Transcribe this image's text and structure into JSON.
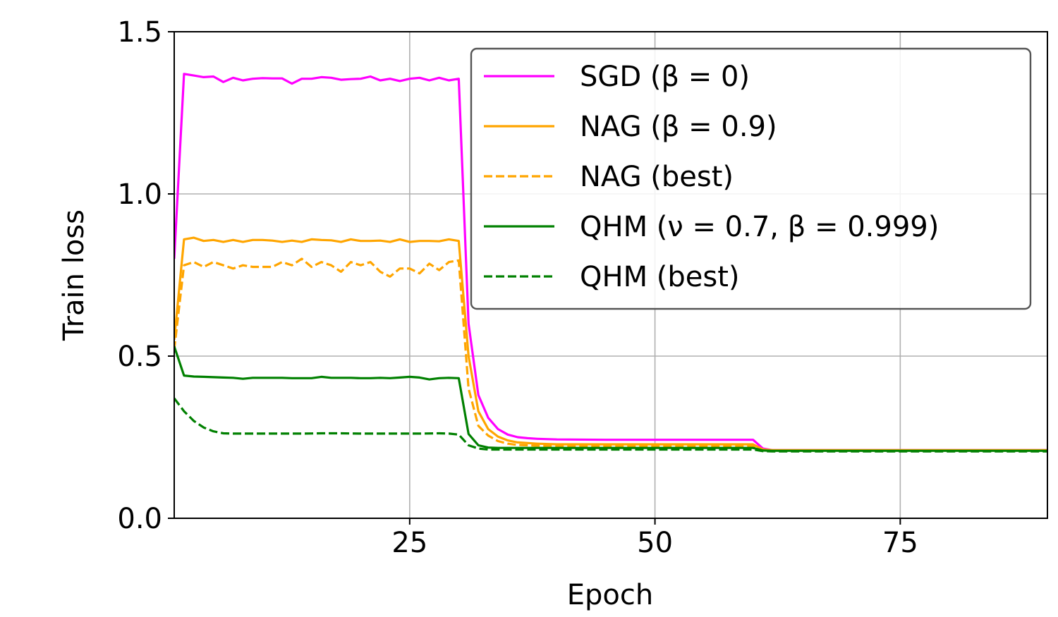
{
  "chart_data": {
    "type": "line",
    "title": "",
    "xlabel": "Epoch",
    "ylabel": "Train loss",
    "xlim": [
      1,
      90
    ],
    "ylim": [
      0,
      1.5
    ],
    "xticks": [
      25,
      50,
      75
    ],
    "yticks": [
      0.0,
      0.5,
      1.0,
      1.5
    ],
    "xtick_labels": [
      "25",
      "50",
      "75"
    ],
    "ytick_labels": [
      "0.0",
      "0.5",
      "1.0",
      "1.5"
    ],
    "grid": true,
    "legend_position": "top-right",
    "series": [
      {
        "name": "SGD (β = 0)",
        "color": "#ff00ff",
        "dash": "solid",
        "x": [
          1,
          2,
          3,
          4,
          5,
          6,
          7,
          8,
          9,
          10,
          11,
          12,
          13,
          14,
          15,
          16,
          17,
          18,
          19,
          20,
          21,
          22,
          23,
          24,
          25,
          26,
          27,
          28,
          29,
          30,
          31,
          32,
          33,
          34,
          35,
          36,
          37,
          38,
          40,
          45,
          50,
          55,
          59,
          60,
          61,
          62,
          65,
          70,
          80,
          90
        ],
        "y": [
          0.8,
          1.37,
          1.365,
          1.36,
          1.362,
          1.345,
          1.358,
          1.35,
          1.355,
          1.357,
          1.356,
          1.356,
          1.34,
          1.355,
          1.355,
          1.36,
          1.358,
          1.352,
          1.354,
          1.355,
          1.362,
          1.35,
          1.355,
          1.348,
          1.355,
          1.358,
          1.35,
          1.358,
          1.35,
          1.355,
          0.6,
          0.38,
          0.31,
          0.275,
          0.258,
          0.25,
          0.247,
          0.245,
          0.243,
          0.242,
          0.242,
          0.242,
          0.242,
          0.242,
          0.215,
          0.21,
          0.21,
          0.21,
          0.21,
          0.21
        ]
      },
      {
        "name": "NAG (β = 0.9)",
        "color": "#ffa500",
        "dash": "solid",
        "x": [
          1,
          2,
          3,
          4,
          5,
          6,
          7,
          8,
          9,
          10,
          11,
          12,
          13,
          14,
          15,
          16,
          17,
          18,
          19,
          20,
          21,
          22,
          23,
          24,
          25,
          26,
          27,
          28,
          29,
          30,
          31,
          32,
          33,
          34,
          35,
          36,
          38,
          40,
          45,
          50,
          55,
          59,
          60,
          61,
          62,
          65,
          70,
          80,
          90
        ],
        "y": [
          0.55,
          0.86,
          0.865,
          0.855,
          0.858,
          0.852,
          0.858,
          0.852,
          0.858,
          0.858,
          0.856,
          0.852,
          0.856,
          0.852,
          0.86,
          0.858,
          0.857,
          0.852,
          0.86,
          0.855,
          0.855,
          0.856,
          0.852,
          0.86,
          0.852,
          0.855,
          0.855,
          0.854,
          0.86,
          0.855,
          0.5,
          0.33,
          0.275,
          0.252,
          0.24,
          0.234,
          0.23,
          0.228,
          0.228,
          0.228,
          0.228,
          0.228,
          0.228,
          0.212,
          0.21,
          0.21,
          0.21,
          0.21,
          0.21
        ]
      },
      {
        "name": "NAG (best)",
        "color": "#ffa500",
        "dash": "dashed",
        "x": [
          1,
          2,
          3,
          4,
          5,
          6,
          7,
          8,
          9,
          10,
          11,
          12,
          13,
          14,
          15,
          16,
          17,
          18,
          19,
          20,
          21,
          22,
          23,
          24,
          25,
          26,
          27,
          28,
          29,
          30,
          31,
          32,
          33,
          34,
          35,
          36,
          38,
          40,
          45,
          50,
          55,
          59,
          60,
          61,
          62,
          65,
          70,
          80,
          90
        ],
        "y": [
          0.52,
          0.78,
          0.79,
          0.775,
          0.79,
          0.78,
          0.77,
          0.78,
          0.775,
          0.775,
          0.775,
          0.79,
          0.78,
          0.8,
          0.775,
          0.79,
          0.78,
          0.76,
          0.79,
          0.78,
          0.79,
          0.76,
          0.745,
          0.77,
          0.77,
          0.755,
          0.785,
          0.765,
          0.79,
          0.795,
          0.4,
          0.285,
          0.255,
          0.238,
          0.23,
          0.226,
          0.224,
          0.223,
          0.222,
          0.222,
          0.222,
          0.222,
          0.222,
          0.211,
          0.209,
          0.209,
          0.209,
          0.209,
          0.209
        ]
      },
      {
        "name": "QHM (ν = 0.7, β = 0.999)",
        "color": "#008000",
        "dash": "solid",
        "x": [
          1,
          2,
          3,
          4,
          5,
          6,
          7,
          8,
          9,
          10,
          11,
          12,
          13,
          14,
          15,
          16,
          17,
          18,
          19,
          20,
          21,
          22,
          23,
          24,
          25,
          26,
          27,
          28,
          29,
          30,
          31,
          32,
          33,
          34,
          35,
          38,
          40,
          45,
          50,
          55,
          59,
          60,
          61,
          62,
          65,
          70,
          80,
          90
        ],
        "y": [
          0.53,
          0.44,
          0.437,
          0.436,
          0.435,
          0.434,
          0.433,
          0.43,
          0.433,
          0.433,
          0.433,
          0.433,
          0.432,
          0.432,
          0.432,
          0.436,
          0.433,
          0.433,
          0.433,
          0.432,
          0.432,
          0.433,
          0.432,
          0.434,
          0.436,
          0.434,
          0.428,
          0.432,
          0.433,
          0.432,
          0.26,
          0.225,
          0.218,
          0.217,
          0.217,
          0.217,
          0.217,
          0.217,
          0.217,
          0.217,
          0.217,
          0.217,
          0.209,
          0.208,
          0.208,
          0.208,
          0.208,
          0.208
        ]
      },
      {
        "name": "QHM (best)",
        "color": "#008000",
        "dash": "dashed",
        "x": [
          1,
          2,
          3,
          4,
          5,
          6,
          7,
          8,
          10,
          12,
          14,
          16,
          18,
          20,
          22,
          24,
          26,
          28,
          29,
          30,
          31,
          32,
          33,
          34,
          35,
          38,
          40,
          45,
          50,
          55,
          59,
          60,
          61,
          62,
          65,
          70,
          80,
          90
        ],
        "y": [
          0.37,
          0.33,
          0.3,
          0.28,
          0.268,
          0.262,
          0.261,
          0.261,
          0.261,
          0.261,
          0.261,
          0.262,
          0.262,
          0.261,
          0.261,
          0.261,
          0.261,
          0.262,
          0.261,
          0.258,
          0.225,
          0.215,
          0.212,
          0.212,
          0.212,
          0.212,
          0.212,
          0.212,
          0.212,
          0.212,
          0.212,
          0.212,
          0.207,
          0.206,
          0.206,
          0.206,
          0.206,
          0.206
        ]
      }
    ]
  }
}
